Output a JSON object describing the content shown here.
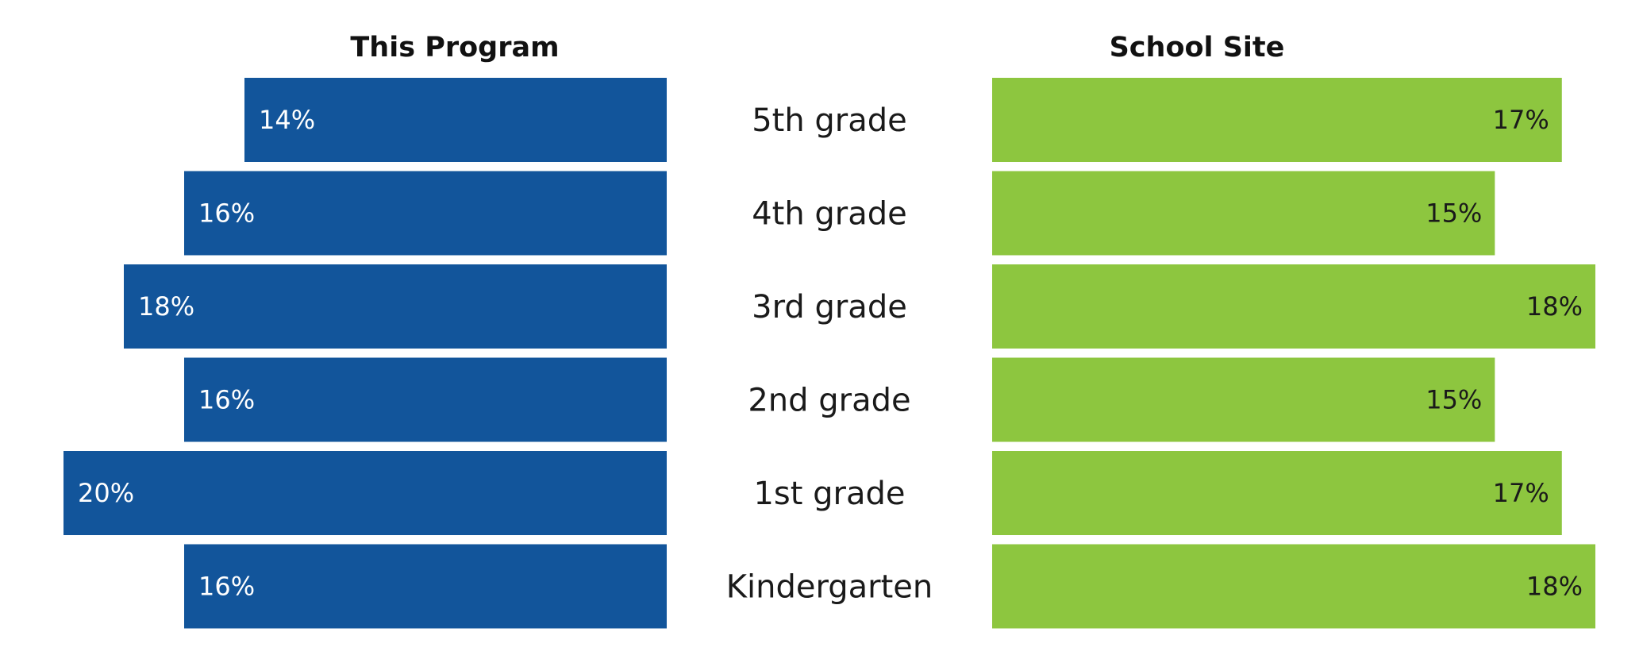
{
  "chart_data": {
    "type": "bar",
    "orientation": "horizontal",
    "layout": "butterfly",
    "categories": [
      "5th grade",
      "4th grade",
      "3rd grade",
      "2nd grade",
      "1st grade",
      "Kindergarten"
    ],
    "series": [
      {
        "name": "This Program",
        "values": [
          14,
          16,
          18,
          16,
          20,
          16
        ],
        "labels": [
          "14%",
          "16%",
          "18%",
          "16%",
          "20%",
          "16%"
        ],
        "color": "#12559B",
        "label_color": "#ffffff",
        "direction": "left"
      },
      {
        "name": "School Site",
        "values": [
          17,
          15,
          18,
          15,
          17,
          18
        ],
        "labels": [
          "17%",
          "15%",
          "18%",
          "15%",
          "17%",
          "18%"
        ],
        "color": "#8DC63F",
        "label_color": "#1a1a1a",
        "direction": "right"
      }
    ],
    "xlabel": "",
    "ylabel": "",
    "grid": false,
    "legend": "none"
  }
}
